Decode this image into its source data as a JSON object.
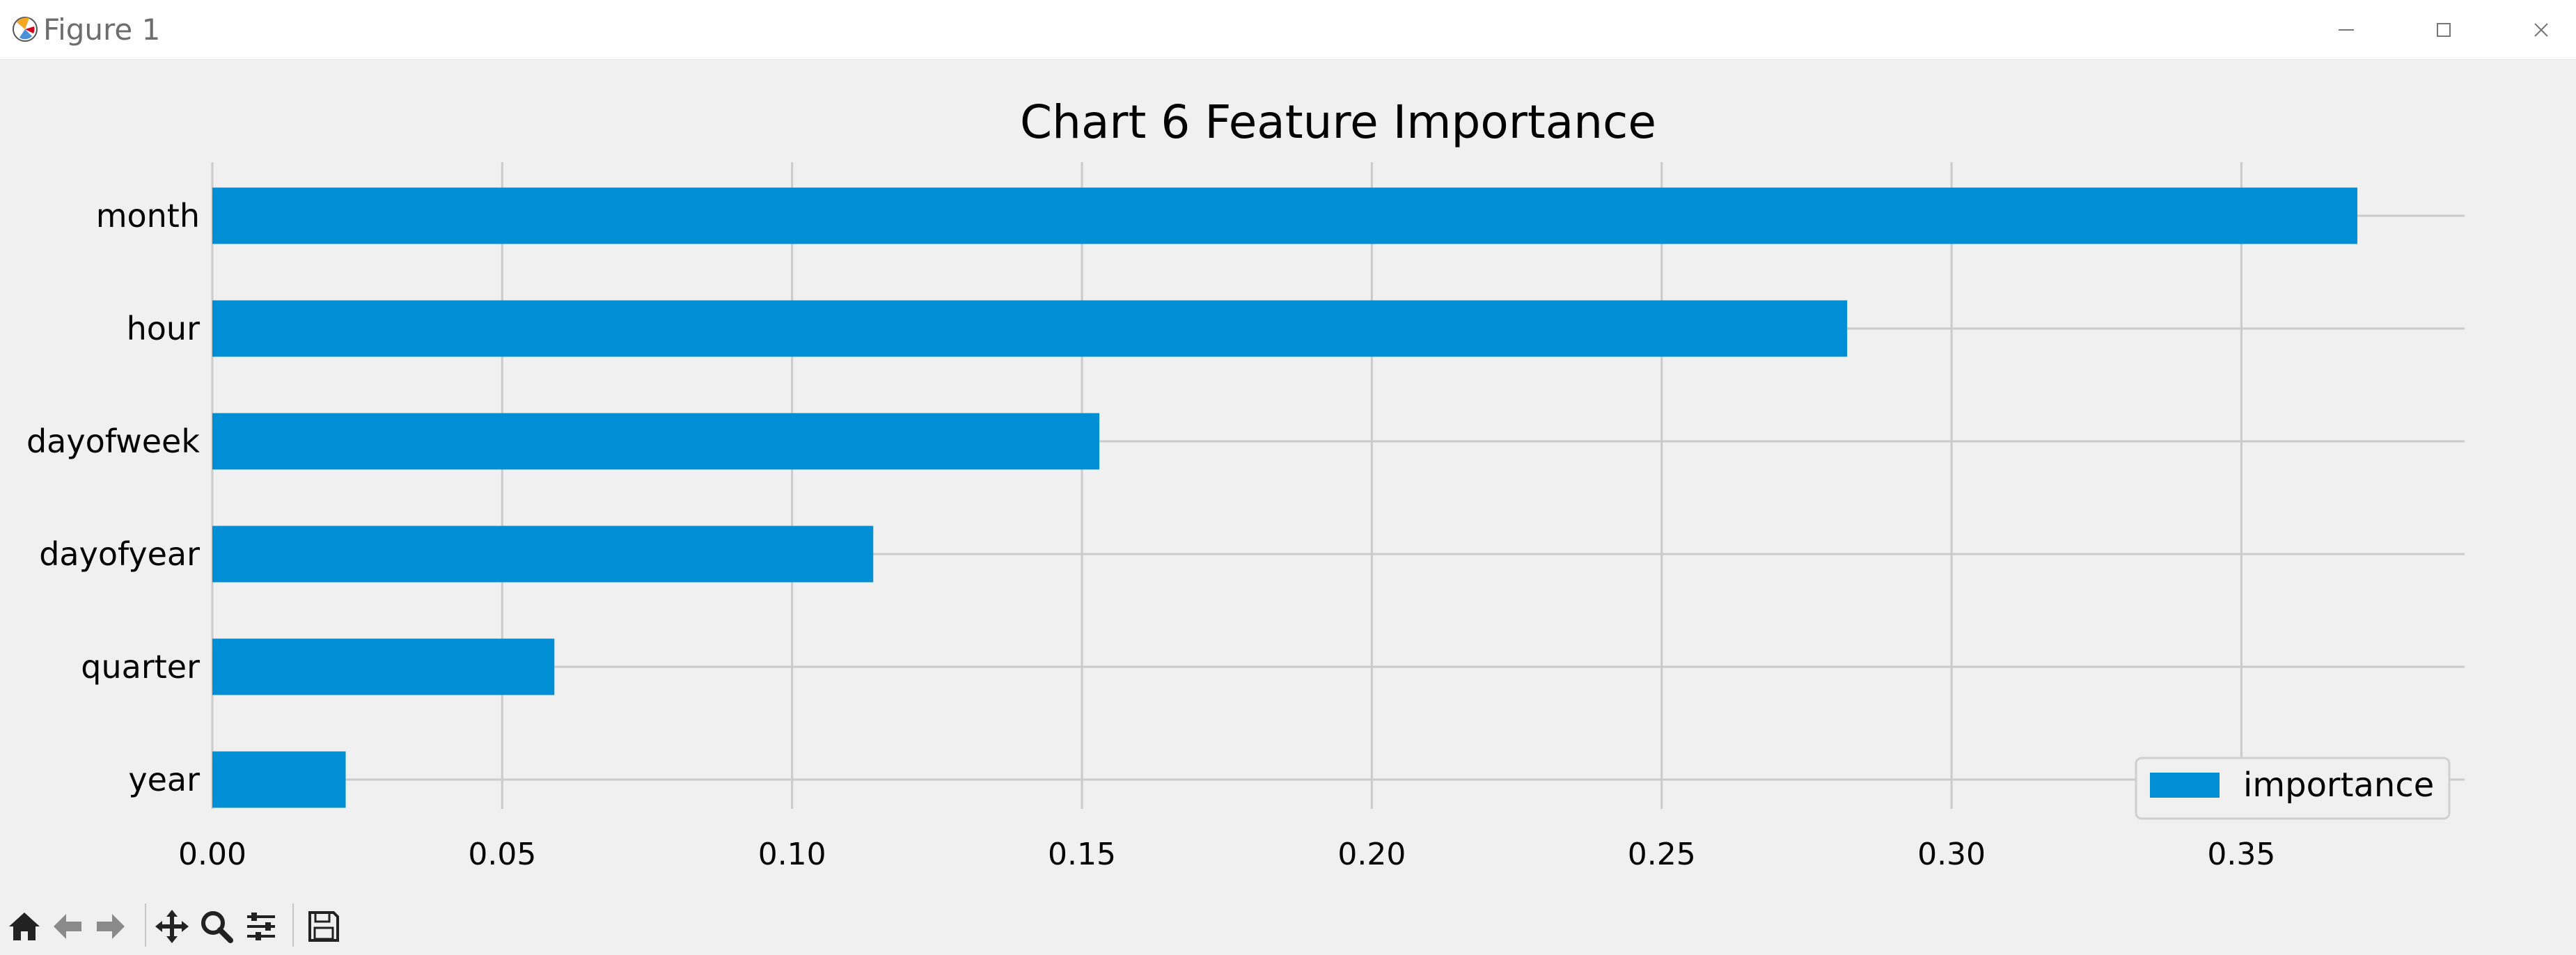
{
  "window": {
    "title": "Figure 1",
    "minimize_icon": "minimize-icon",
    "maximize_icon": "maximize-icon",
    "close_icon": "close-icon"
  },
  "toolbar": {
    "tools": [
      "home-icon",
      "back-arrow-icon",
      "forward-arrow-icon",
      "pan-icon",
      "zoom-icon",
      "configure-subplots-icon",
      "save-icon"
    ]
  },
  "colors": {
    "bar": "#008fd5",
    "grid": "#cbcbcb",
    "background": "#f0f0f0"
  },
  "chart_data": {
    "type": "bar",
    "orientation": "horizontal",
    "title": "Chart 6 Feature Importance",
    "xlabel": "",
    "ylabel": "",
    "categories": [
      "month",
      "hour",
      "dayofweek",
      "dayofyear",
      "quarter",
      "year"
    ],
    "series": [
      {
        "name": "importance",
        "values": [
          0.37,
          0.282,
          0.153,
          0.114,
          0.059,
          0.023
        ]
      }
    ],
    "xlim": [
      0.0,
      0.3885
    ],
    "xticks": [
      0.0,
      0.05,
      0.1,
      0.15,
      0.2,
      0.25,
      0.3,
      0.35
    ],
    "xtick_labels": [
      "0.00",
      "0.05",
      "0.10",
      "0.15",
      "0.20",
      "0.25",
      "0.30",
      "0.35"
    ],
    "grid": true,
    "legend_position": "lower-right"
  }
}
